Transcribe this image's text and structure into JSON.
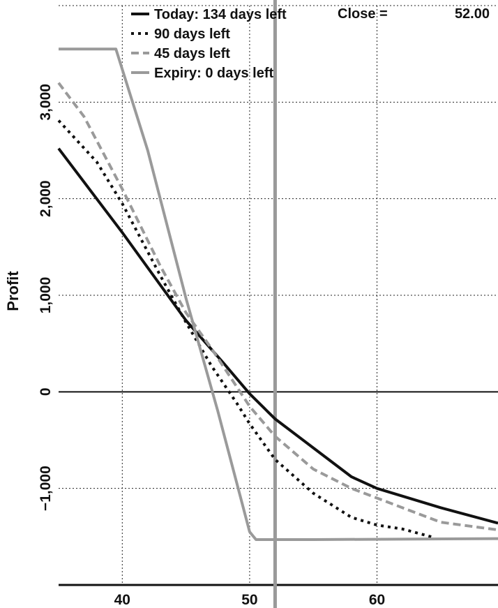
{
  "chart_data": {
    "type": "line",
    "ylabel": "Profit",
    "xlim": [
      35,
      69.5
    ],
    "ylim": [
      -2000,
      4000
    ],
    "xticks": [
      40,
      50,
      60
    ],
    "yticks": [
      -1000,
      0,
      1000,
      2000,
      3000
    ],
    "xtick_labels": [
      "40",
      "50",
      "60"
    ],
    "ytick_labels": [
      "−1,000",
      "0",
      "1,000",
      "2,000",
      "3,000"
    ],
    "grid": true,
    "legend_position": "top",
    "marker_line": {
      "x": 52,
      "color": "#9a9a9a"
    },
    "close": {
      "label": "Close =",
      "value": "52.00"
    },
    "series": [
      {
        "name": "Today: 134 days left",
        "style": "solid",
        "color": "#111111",
        "points": [
          [
            35,
            2520
          ],
          [
            40,
            1650
          ],
          [
            45,
            740
          ],
          [
            48,
            290
          ],
          [
            50,
            -20
          ],
          [
            52,
            -280
          ],
          [
            55,
            -580
          ],
          [
            58,
            -880
          ],
          [
            60,
            -1000
          ],
          [
            65,
            -1200
          ],
          [
            69.5,
            -1360
          ]
        ]
      },
      {
        "name": "90 days left",
        "style": "dotted",
        "color": "#111111",
        "points": [
          [
            35,
            2810
          ],
          [
            38,
            2380
          ],
          [
            40,
            1950
          ],
          [
            43,
            1200
          ],
          [
            45,
            720
          ],
          [
            47,
            270
          ],
          [
            49,
            -120
          ],
          [
            50,
            -330
          ],
          [
            52,
            -700
          ],
          [
            55,
            -1050
          ],
          [
            58,
            -1300
          ],
          [
            60,
            -1380
          ],
          [
            62,
            -1420
          ],
          [
            64.5,
            -1510
          ]
        ]
      },
      {
        "name": "45 days left",
        "style": "dashed",
        "color": "#9a9a9a",
        "points": [
          [
            35,
            3200
          ],
          [
            37,
            2850
          ],
          [
            40,
            2100
          ],
          [
            43,
            1300
          ],
          [
            45,
            820
          ],
          [
            47,
            450
          ],
          [
            50,
            -150
          ],
          [
            52,
            -460
          ],
          [
            55,
            -800
          ],
          [
            58,
            -1000
          ],
          [
            60,
            -1100
          ],
          [
            65,
            -1350
          ],
          [
            69.5,
            -1430
          ]
        ]
      },
      {
        "name": "Expiry:  0 days left",
        "style": "solid",
        "color": "#9a9a9a",
        "points": [
          [
            35,
            3550
          ],
          [
            39.5,
            3550
          ],
          [
            42,
            2500
          ],
          [
            45,
            970
          ],
          [
            47.5,
            -200
          ],
          [
            50,
            -1450
          ],
          [
            50.5,
            -1530
          ],
          [
            55,
            -1530
          ],
          [
            69.5,
            -1520
          ]
        ]
      }
    ]
  }
}
